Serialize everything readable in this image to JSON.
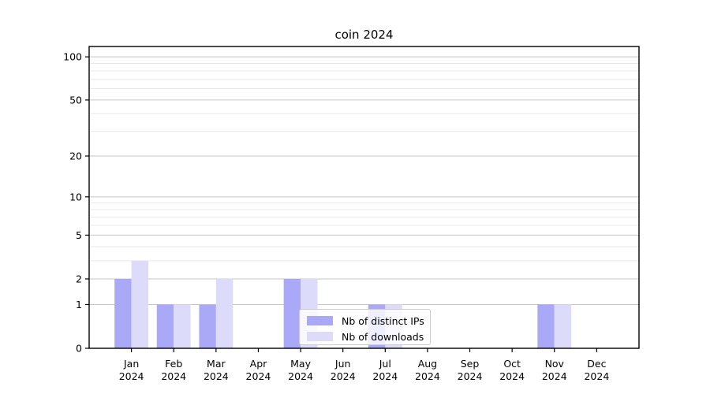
{
  "title": "coin 2024",
  "legend": {
    "items": [
      {
        "label": "Nb of distinct IPs",
        "color": "#a9a9f7"
      },
      {
        "label": "Nb of downloads",
        "color": "#dcdcfa"
      }
    ]
  },
  "chart_data": {
    "type": "bar",
    "title": "coin 2024",
    "scale": "log1p",
    "categories": [
      "Jan",
      "Feb",
      "Mar",
      "Apr",
      "May",
      "Jun",
      "Jul",
      "Aug",
      "Sep",
      "Oct",
      "Nov",
      "Dec"
    ],
    "year_label": "2024",
    "series": [
      {
        "name": "Nb of distinct IPs",
        "color": "#a9a9f7",
        "values": [
          2,
          1,
          1,
          0,
          2,
          0,
          1,
          0,
          0,
          0,
          1,
          0
        ]
      },
      {
        "name": "Nb of downloads",
        "color": "#dcdcfa",
        "values": [
          3,
          1,
          2,
          0,
          2,
          0,
          1,
          0,
          0,
          0,
          1,
          0
        ]
      }
    ],
    "yticks_major": [
      0,
      1,
      2,
      5,
      10,
      20,
      50,
      100
    ],
    "yticks_minor": [
      3,
      4,
      6,
      7,
      8,
      9,
      30,
      40,
      60,
      70,
      80,
      90
    ],
    "ylim": [
      0,
      118
    ],
    "grid": true,
    "legend_position": "lower center",
    "xlabel": "",
    "ylabel": ""
  },
  "colors": {
    "grid_major": "#c6c6c6",
    "grid_minor": "#e9e9e9",
    "spine": "#000000",
    "text": "#000000"
  }
}
